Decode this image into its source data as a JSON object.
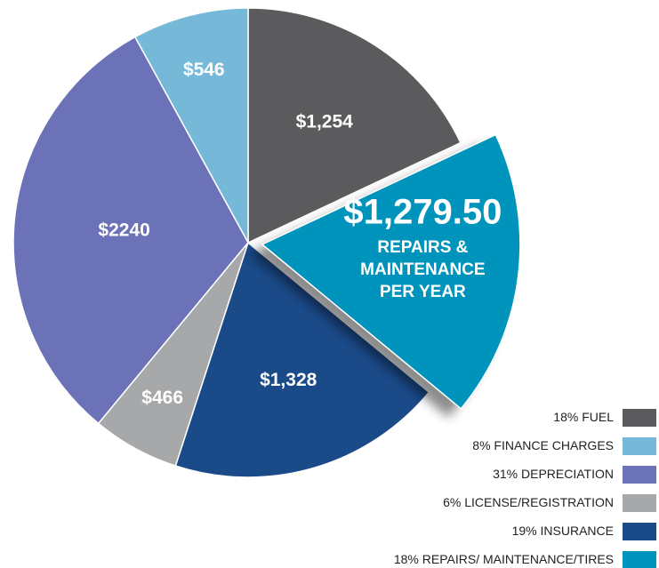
{
  "chart_data": {
    "type": "pie",
    "categories": [
      "FUEL",
      "FINANCE CHARGES",
      "DEPRECIATION",
      "LICENSE/REGISTRATION",
      "INSURANCE",
      "REPAIRS/ MAINTENANCE/TIRES"
    ],
    "values": [
      18,
      8,
      31,
      6,
      19,
      18
    ],
    "value_labels": [
      "18%",
      "8%",
      "31%",
      "6%",
      "19%",
      "18%"
    ],
    "amounts": [
      1254,
      546,
      2240,
      466,
      1328,
      1279.5
    ],
    "amount_labels": [
      "$1,254",
      "$546",
      "$2240",
      "$466",
      "$1,328",
      "$1,279.50"
    ],
    "colors": [
      "#5b5b5d",
      "#75b8d7",
      "#6c72b7",
      "#a7a8aa",
      "#1b4a89",
      "#0094bc"
    ],
    "annotation": [
      "REPAIRS &",
      "MAINTENANCE",
      "PER YEAR"
    ],
    "legend": "bottom-right"
  }
}
